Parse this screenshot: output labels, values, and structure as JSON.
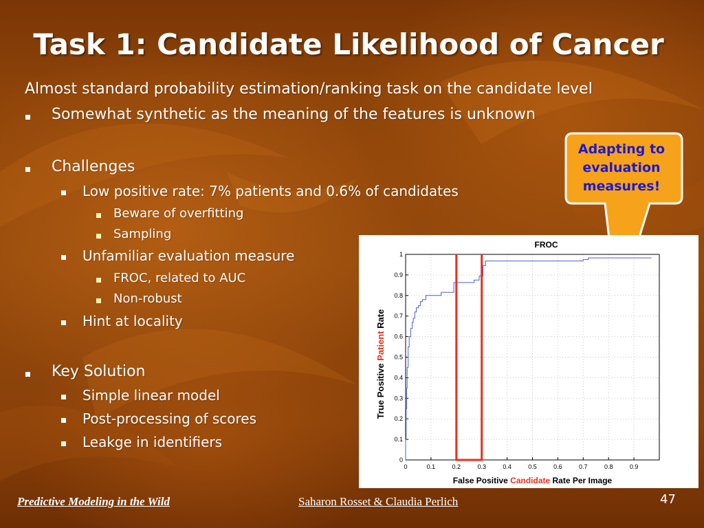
{
  "slide": {
    "title": "Task 1: Candidate Likelihood of Cancer",
    "body": [
      {
        "level": 0,
        "text": "Almost standard probability estimation/ranking task on the candidate level"
      },
      {
        "level": 1,
        "text": "Somewhat synthetic as the meaning of the features is unknown"
      },
      {
        "level": 1,
        "text": "Challenges"
      },
      {
        "level": 2,
        "text": "Low positive rate: 7% patients and 0.6% of candidates"
      },
      {
        "level": 3,
        "text": "Beware of overfitting"
      },
      {
        "level": 3,
        "text": "Sampling"
      },
      {
        "level": 2,
        "text": "Unfamiliar evaluation measure"
      },
      {
        "level": 3,
        "text": "FROC, related to AUC"
      },
      {
        "level": 3,
        "text": "Non-robust"
      },
      {
        "level": 2,
        "text": "Hint at locality"
      },
      {
        "level": 1,
        "text": "Key Solution"
      },
      {
        "level": 2,
        "text": "Simple linear model"
      },
      {
        "level": 2,
        "text": "Post-processing of scores"
      },
      {
        "level": 2,
        "text": "Leakge in identifiers"
      }
    ],
    "callout": "Adapting to\nevaluation\nmeasures!",
    "footer_left": "Predictive Modeling in the Wild",
    "footer_center": "Saharon Rosset & Claudia Perlich",
    "page_number": "47"
  },
  "colors": {
    "accent_red": "#e8301c",
    "callout_fill": "#f7a21b",
    "callout_text": "#1a1ad0",
    "curve": "#4a5fd6",
    "bullet": "#ffffff",
    "sub_bullet": "#fff6b8"
  },
  "chart_data": {
    "type": "line",
    "title": "FROC",
    "xlabel_parts": [
      {
        "text": "False Positive ",
        "highlight": false
      },
      {
        "text": "Candidate",
        "highlight": true
      },
      {
        "text": " Rate Per Image",
        "highlight": false
      }
    ],
    "ylabel_parts": [
      {
        "text": "True Positive ",
        "highlight": false
      },
      {
        "text": "Patient",
        "highlight": true
      },
      {
        "text": " Rate",
        "highlight": false
      }
    ],
    "xlim": [
      0,
      1
    ],
    "ylim": [
      0,
      1
    ],
    "x_ticks": [
      "0",
      "0.1",
      "0.2",
      "0.3",
      "0.4",
      "0.5",
      "0.6",
      "0.7",
      "0.8",
      "0.9"
    ],
    "y_ticks": [
      "0",
      "0.1",
      "0.2",
      "0.3",
      "0.4",
      "0.5",
      "0.6",
      "0.7",
      "0.8",
      "0.9",
      "1"
    ],
    "grid": true,
    "series": [
      {
        "style": "step",
        "points": [
          [
            0.0,
            0.0
          ],
          [
            0.0,
            0.1
          ],
          [
            0.002,
            0.1
          ],
          [
            0.002,
            0.25
          ],
          [
            0.004,
            0.25
          ],
          [
            0.004,
            0.35
          ],
          [
            0.006,
            0.35
          ],
          [
            0.006,
            0.45
          ],
          [
            0.01,
            0.45
          ],
          [
            0.01,
            0.55
          ],
          [
            0.014,
            0.55
          ],
          [
            0.014,
            0.6
          ],
          [
            0.02,
            0.6
          ],
          [
            0.02,
            0.64
          ],
          [
            0.026,
            0.64
          ],
          [
            0.026,
            0.67
          ],
          [
            0.03,
            0.67
          ],
          [
            0.03,
            0.69
          ],
          [
            0.036,
            0.69
          ],
          [
            0.036,
            0.72
          ],
          [
            0.042,
            0.72
          ],
          [
            0.042,
            0.74
          ],
          [
            0.05,
            0.74
          ],
          [
            0.05,
            0.75
          ],
          [
            0.058,
            0.75
          ],
          [
            0.058,
            0.77
          ],
          [
            0.066,
            0.77
          ],
          [
            0.066,
            0.78
          ],
          [
            0.08,
            0.78
          ],
          [
            0.08,
            0.8
          ],
          [
            0.14,
            0.8
          ],
          [
            0.14,
            0.815
          ],
          [
            0.19,
            0.815
          ],
          [
            0.19,
            0.863
          ],
          [
            0.27,
            0.863
          ],
          [
            0.27,
            0.875
          ],
          [
            0.29,
            0.875
          ],
          [
            0.29,
            0.895
          ],
          [
            0.305,
            0.895
          ],
          [
            0.305,
            0.945
          ],
          [
            0.315,
            0.945
          ],
          [
            0.315,
            0.968
          ],
          [
            0.7,
            0.968
          ],
          [
            0.7,
            0.975
          ],
          [
            0.72,
            0.975
          ],
          [
            0.72,
            0.983
          ],
          [
            0.97,
            0.983
          ]
        ]
      }
    ],
    "highlight_box": {
      "x": [
        0.2,
        0.3
      ],
      "y": [
        0,
        1
      ]
    }
  }
}
